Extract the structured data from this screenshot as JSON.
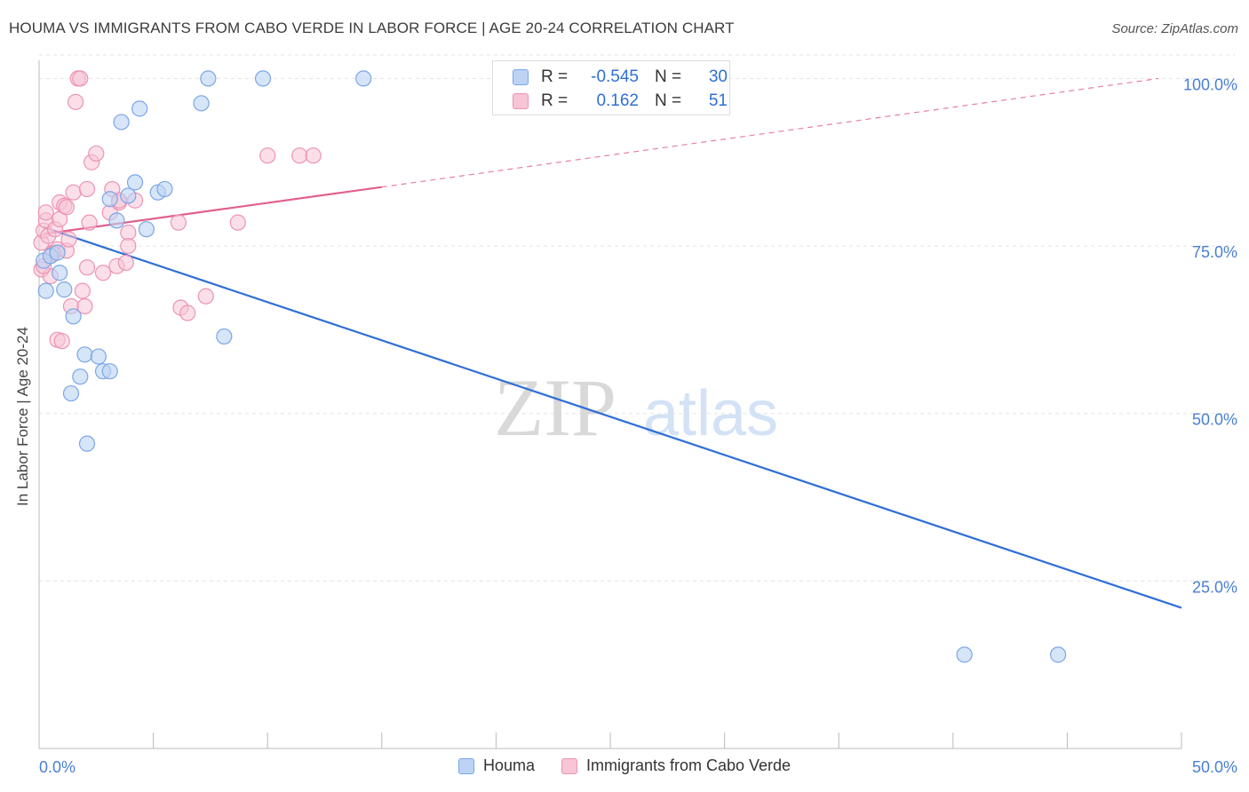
{
  "header": {
    "title": "HOUMA VS IMMIGRANTS FROM CABO VERDE IN LABOR FORCE | AGE 20-24 CORRELATION CHART",
    "source": "Source: ZipAtlas.com"
  },
  "watermark": {
    "zip": "ZIP",
    "atlas": "atlas"
  },
  "stats_box": {
    "row1": {
      "r_label": "R =",
      "r_value": "-0.545",
      "n_label": "N =",
      "n_value": "30"
    },
    "row2": {
      "r_label": "R =",
      "r_value": "0.162",
      "n_label": "N =",
      "n_value": "51"
    }
  },
  "legend": {
    "series1": "Houma",
    "series2": "Immigrants from Cabo Verde"
  },
  "colors": {
    "houma_fill": "#bcd3f5",
    "houma_stroke": "#7aa6e6",
    "houma_line": "#2f6fd6",
    "cabo_fill": "#f8c5d6",
    "cabo_stroke": "#ec93b2",
    "cabo_line": "#e0608c",
    "grid": "#e3e3e3",
    "axis_text": "#4a7fd4"
  },
  "chart_data": {
    "type": "scatter",
    "title": "HOUMA VS IMMIGRANTS FROM CABO VERDE IN LABOR FORCE | AGE 20-24 CORRELATION CHART",
    "xlabel": "",
    "ylabel": "In Labor Force | Age 20-24",
    "xlim": [
      0,
      50
    ],
    "ylim": [
      0,
      103.5
    ],
    "x_tick_labels": [
      "0.0%",
      "50.0%"
    ],
    "y_ticks": [
      25,
      50,
      75,
      100
    ],
    "y_tick_labels": [
      "25.0%",
      "50.0%",
      "75.0%",
      "100.0%"
    ],
    "grid": true,
    "legend_position": "bottom",
    "series": [
      {
        "name": "Houma",
        "points": [
          [
            0.2,
            72.8
          ],
          [
            0.3,
            68.3
          ],
          [
            0.5,
            73.5
          ],
          [
            0.8,
            74.0
          ],
          [
            0.9,
            71.0
          ],
          [
            1.1,
            68.5
          ],
          [
            1.4,
            53.0
          ],
          [
            1.5,
            64.5
          ],
          [
            1.8,
            55.5
          ],
          [
            2.0,
            58.8
          ],
          [
            2.1,
            45.5
          ],
          [
            2.6,
            58.5
          ],
          [
            2.8,
            56.3
          ],
          [
            3.1,
            56.3
          ],
          [
            3.1,
            82.0
          ],
          [
            3.4,
            78.8
          ],
          [
            3.6,
            93.5
          ],
          [
            3.9,
            82.5
          ],
          [
            4.2,
            84.5
          ],
          [
            4.4,
            95.5
          ],
          [
            4.7,
            77.5
          ],
          [
            5.2,
            83.0
          ],
          [
            5.5,
            83.5
          ],
          [
            7.1,
            96.3
          ],
          [
            7.4,
            100.0
          ],
          [
            8.1,
            61.5
          ],
          [
            9.8,
            100.0
          ],
          [
            14.2,
            100.0
          ],
          [
            40.5,
            14.0
          ],
          [
            44.6,
            14.0
          ]
        ],
        "trend": {
          "x": [
            0.2,
            50.0
          ],
          "y": [
            77.8,
            21.0
          ]
        }
      },
      {
        "name": "Immigrants from Cabo Verde",
        "points": [
          [
            0.1,
            71.5
          ],
          [
            0.1,
            75.5
          ],
          [
            0.2,
            77.3
          ],
          [
            0.3,
            78.8
          ],
          [
            0.3,
            80.0
          ],
          [
            0.4,
            76.5
          ],
          [
            0.5,
            73.5
          ],
          [
            0.5,
            70.5
          ],
          [
            0.6,
            74.0
          ],
          [
            0.7,
            77.5
          ],
          [
            0.8,
            74.5
          ],
          [
            0.8,
            61.0
          ],
          [
            0.9,
            81.5
          ],
          [
            0.9,
            79.0
          ],
          [
            1.0,
            60.8
          ],
          [
            1.1,
            81.0
          ],
          [
            1.2,
            74.3
          ],
          [
            1.3,
            76.0
          ],
          [
            1.4,
            66.0
          ],
          [
            1.5,
            83.0
          ],
          [
            1.6,
            96.5
          ],
          [
            1.7,
            100.0
          ],
          [
            1.8,
            100.0
          ],
          [
            1.9,
            68.3
          ],
          [
            2.0,
            66.0
          ],
          [
            2.1,
            83.5
          ],
          [
            2.1,
            71.8
          ],
          [
            2.2,
            78.5
          ],
          [
            2.3,
            87.5
          ],
          [
            2.5,
            88.8
          ],
          [
            2.8,
            71.0
          ],
          [
            3.1,
            80.0
          ],
          [
            3.2,
            83.5
          ],
          [
            3.4,
            72.0
          ],
          [
            3.5,
            81.5
          ],
          [
            3.8,
            72.5
          ],
          [
            3.9,
            77.0
          ],
          [
            3.9,
            75.0
          ],
          [
            4.2,
            81.8
          ],
          [
            6.1,
            78.5
          ],
          [
            6.2,
            65.8
          ],
          [
            6.5,
            65.0
          ],
          [
            7.3,
            67.5
          ],
          [
            8.7,
            78.5
          ],
          [
            10.0,
            88.5
          ],
          [
            11.4,
            88.5
          ],
          [
            12.0,
            88.5
          ],
          [
            0.2,
            72.0
          ],
          [
            0.6,
            73.8
          ],
          [
            1.2,
            80.8
          ],
          [
            3.5,
            81.8
          ]
        ],
        "trend": {
          "solid_x": [
            0.2,
            15.0
          ],
          "solid_y": [
            76.8,
            83.8
          ],
          "dashed_x": [
            15.0,
            49.0
          ],
          "dashed_y": [
            83.8,
            100.0
          ]
        }
      }
    ]
  }
}
